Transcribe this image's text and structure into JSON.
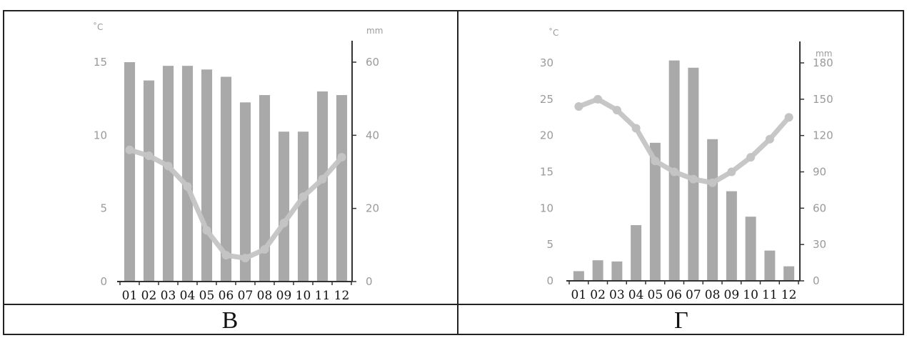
{
  "panels": [
    {
      "letter": "В"
    },
    {
      "letter": "Г"
    }
  ],
  "chart_data": [
    {
      "type": "bar",
      "categories": [
        "01",
        "02",
        "03",
        "04",
        "05",
        "06",
        "07",
        "08",
        "09",
        "10",
        "11",
        "12"
      ],
      "y_left_label": "˚C",
      "y_right_label": "mm",
      "y_left_ticks": [
        0,
        5,
        10,
        15
      ],
      "y_right_ticks": [
        0,
        20,
        40,
        60
      ],
      "y_left_range": [
        0,
        15
      ],
      "y_right_range": [
        0,
        60
      ],
      "series": [
        {
          "axis": "right",
          "kind": "bar",
          "color": "#a9a9a9",
          "values": [
            60,
            55,
            59,
            59,
            58,
            56,
            49,
            51,
            41,
            41,
            52,
            51
          ]
        },
        {
          "axis": "left",
          "kind": "line",
          "color": "#c4c4c4",
          "values": [
            9.0,
            8.6,
            7.9,
            6.5,
            3.5,
            1.8,
            1.6,
            2.2,
            4.0,
            5.8,
            7.0,
            8.5
          ]
        }
      ]
    },
    {
      "type": "bar",
      "categories": [
        "01",
        "02",
        "03",
        "04",
        "05",
        "06",
        "07",
        "08",
        "09",
        "10",
        "11",
        "12"
      ],
      "y_left_label": "˚C",
      "y_right_label": "mm",
      "y_left_ticks": [
        0,
        5,
        10,
        15,
        20,
        25,
        30
      ],
      "y_right_ticks": [
        0,
        30,
        60,
        90,
        120,
        150,
        180
      ],
      "y_left_range": [
        0,
        30
      ],
      "y_right_range": [
        0,
        180
      ],
      "series": [
        {
          "axis": "right",
          "kind": "bar",
          "color": "#a9a9a9",
          "values": [
            8,
            17,
            16,
            46,
            114,
            182,
            176,
            117,
            74,
            53,
            25,
            12
          ]
        },
        {
          "axis": "left",
          "kind": "line",
          "color": "#c4c4c4",
          "values": [
            24.0,
            25.0,
            23.5,
            21.0,
            16.5,
            15.0,
            14.0,
            13.5,
            15.0,
            17.0,
            19.5,
            22.5
          ]
        }
      ]
    }
  ]
}
